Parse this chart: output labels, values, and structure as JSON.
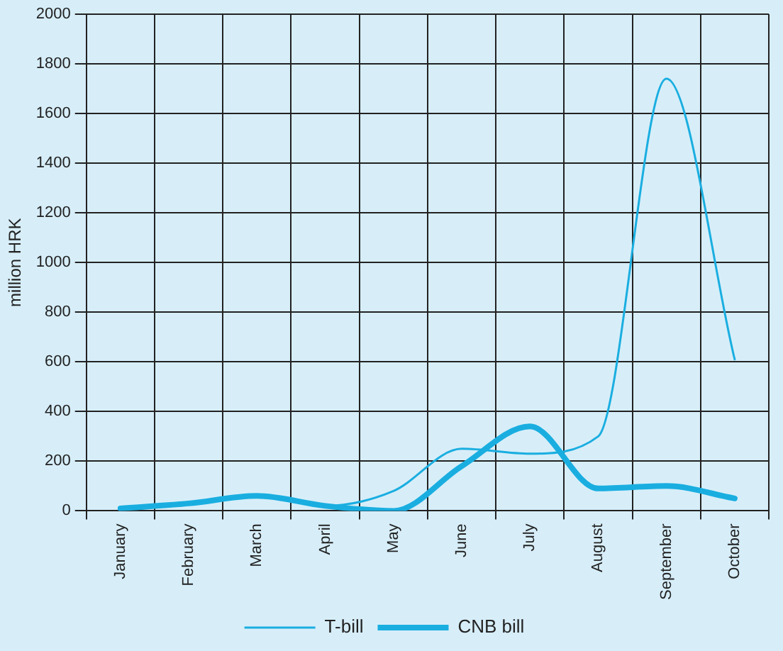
{
  "chart_data": {
    "type": "line",
    "ylabel": "million HRK",
    "categories": [
      "January",
      "February",
      "March",
      "April",
      "May",
      "June",
      "July",
      "August",
      "September",
      "October"
    ],
    "series": [
      {
        "name": "T-bill",
        "color": "#1aaee0",
        "values": [
          10,
          30,
          60,
          20,
          80,
          250,
          230,
          300,
          1740,
          610
        ]
      },
      {
        "name": "CNB bill",
        "color": "#1aaee0",
        "values": [
          10,
          30,
          60,
          20,
          0,
          180,
          340,
          90,
          100,
          50
        ]
      }
    ],
    "ylim": [
      0,
      2000
    ],
    "yticks": [
      0,
      200,
      400,
      600,
      800,
      1000,
      1200,
      1400,
      1600,
      1800,
      2000
    ],
    "grid": true,
    "legend": "bottom",
    "marker": "none",
    "line_style": "solid"
  }
}
